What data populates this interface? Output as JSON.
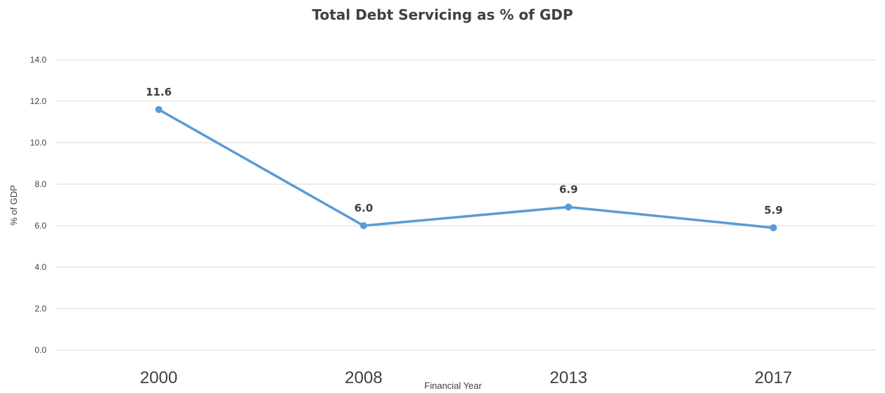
{
  "chart_data": {
    "type": "line",
    "title": "Total Debt Servicing as % of GDP",
    "xlabel": "Financial Year",
    "ylabel": "% of GDP",
    "categories": [
      "2000",
      "2008",
      "2013",
      "2017"
    ],
    "series": [
      {
        "values": [
          11.6,
          6.0,
          6.9,
          5.9
        ],
        "labels": [
          "11.6",
          "6.0",
          "6.9",
          "5.9"
        ]
      }
    ],
    "ylim": [
      0,
      14
    ],
    "yticks": [
      0,
      2,
      4,
      6,
      8,
      10,
      12,
      14
    ],
    "ytick_labels": [
      "0.0",
      "2.0",
      "4.0",
      "6.0",
      "8.0",
      "10.0",
      "12.0",
      "14.0"
    ],
    "grid": true,
    "legend": "none",
    "line_color": "#5b9bd5"
  }
}
